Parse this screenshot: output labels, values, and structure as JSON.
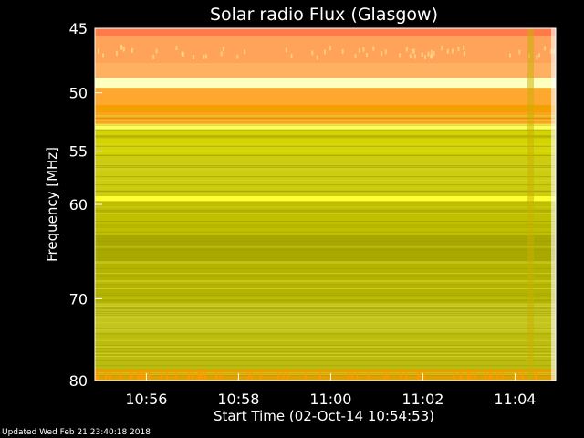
{
  "footer": {
    "updated": "Updated Wed Feb 21 23:40:18 2018"
  },
  "chart_data": {
    "type": "heatmap",
    "title": "Solar radio Flux (Glasgow)",
    "xlabel": "Start Time (02-Oct-14 10:54:53)",
    "ylabel": "Frequency [MHz]",
    "x_range_minutes": [
      "10:54:53",
      "11:04:53"
    ],
    "x_ticks": [
      {
        "t": "10:56",
        "min": 1.117
      },
      {
        "t": "10:58",
        "min": 3.117
      },
      {
        "t": "11:00",
        "min": 5.117
      },
      {
        "t": "11:02",
        "min": 7.117
      },
      {
        "t": "11:04",
        "min": 9.117
      }
    ],
    "x_span_min": 10.0,
    "ylim": [
      45,
      80
    ],
    "y_scale": "log",
    "y_ticks": [
      {
        "label": "45",
        "v": 45
      },
      {
        "label": "50",
        "v": 50
      },
      {
        "label": "55",
        "v": 55
      },
      {
        "label": "60",
        "v": 60
      },
      {
        "label": "70",
        "v": 70
      },
      {
        "label": "80",
        "v": 80
      }
    ],
    "bands": [
      {
        "f0": 45.0,
        "f1": 45.6,
        "color": "#ff7a4a"
      },
      {
        "f0": 45.6,
        "f1": 47.6,
        "color": "#ffa25a"
      },
      {
        "f0": 47.6,
        "f1": 48.8,
        "color": "#ffb060"
      },
      {
        "f0": 48.8,
        "f1": 49.6,
        "color": "#ffffc0"
      },
      {
        "f0": 49.6,
        "f1": 51.0,
        "color": "#ffa830"
      },
      {
        "f0": 51.0,
        "f1": 51.6,
        "color": "#f4a000"
      },
      {
        "f0": 51.6,
        "f1": 52.6,
        "color": "#ffa020"
      },
      {
        "f0": 52.6,
        "f1": 53.2,
        "color": "#ffff60"
      },
      {
        "f0": 53.2,
        "f1": 55.5,
        "color": "#d4d400"
      },
      {
        "f0": 55.5,
        "f1": 59.2,
        "color": "#cccc10"
      },
      {
        "f0": 59.2,
        "f1": 59.7,
        "color": "#ffff30"
      },
      {
        "f0": 59.7,
        "f1": 63.0,
        "color": "#c0c000"
      },
      {
        "f0": 63.0,
        "f1": 66.0,
        "color": "#a8a800"
      },
      {
        "f0": 66.0,
        "f1": 70.5,
        "color": "#b4b400"
      },
      {
        "f0": 70.5,
        "f1": 74.0,
        "color": "#c4c420"
      },
      {
        "f0": 74.0,
        "f1": 78.5,
        "color": "#bcbc10"
      },
      {
        "f0": 78.5,
        "f1": 80.0,
        "color": "#e0a000"
      }
    ],
    "grid": false,
    "legend": "none"
  }
}
